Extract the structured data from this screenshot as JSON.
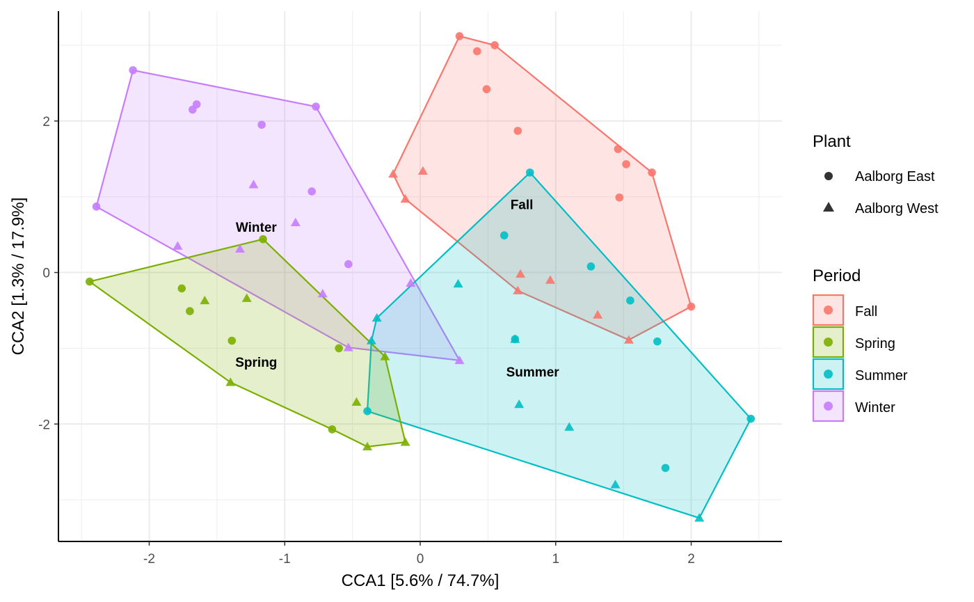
{
  "chart_data": {
    "type": "scatter",
    "xlabel": "CCA1 [5.6% / 74.7%]",
    "ylabel": "CCA2 [1.3% / 17.9%]",
    "xlim": [
      -2.67,
      2.67
    ],
    "ylim": [
      -3.55,
      3.45
    ],
    "x_ticks": [
      -2,
      -1,
      0,
      1,
      2
    ],
    "y_ticks": [
      -2,
      0,
      2
    ],
    "x_tick_labels": [
      "-2",
      "-1",
      "0",
      "1",
      "2"
    ],
    "y_tick_labels": [
      "-2",
      "0",
      "2"
    ],
    "grid": true,
    "legend_position": "right",
    "legend": {
      "shape_title": "Plant",
      "shape_entries": [
        {
          "label": "Aalborg East",
          "shape": "circle"
        },
        {
          "label": "Aalborg West",
          "shape": "triangle"
        }
      ],
      "color_title": "Period",
      "color_entries": [
        {
          "label": "Fall",
          "color": "#F8766D"
        },
        {
          "label": "Spring",
          "color": "#7CAE00"
        },
        {
          "label": "Summer",
          "color": "#00BFC4"
        },
        {
          "label": "Winter",
          "color": "#C77CFF"
        }
      ]
    },
    "series": [
      {
        "name": "Winter",
        "color": "#C77CFF",
        "label_pos": [
          -1.21,
          0.6
        ],
        "hull": [
          [
            -2.12,
            2.67
          ],
          [
            -0.77,
            2.19
          ],
          [
            0.29,
            -1.16
          ],
          [
            -0.53,
            -0.99
          ],
          [
            -2.39,
            0.87
          ]
        ],
        "points": [
          {
            "x": -2.12,
            "y": 2.67,
            "shape": "circle"
          },
          {
            "x": -1.65,
            "y": 2.22,
            "shape": "circle"
          },
          {
            "x": -1.68,
            "y": 2.15,
            "shape": "circle"
          },
          {
            "x": -0.77,
            "y": 2.19,
            "shape": "circle"
          },
          {
            "x": -1.17,
            "y": 1.95,
            "shape": "circle"
          },
          {
            "x": -0.8,
            "y": 1.07,
            "shape": "circle"
          },
          {
            "x": -2.39,
            "y": 0.87,
            "shape": "circle"
          },
          {
            "x": -0.53,
            "y": 0.11,
            "shape": "circle"
          },
          {
            "x": -1.23,
            "y": 1.16,
            "shape": "triangle"
          },
          {
            "x": -0.92,
            "y": 0.66,
            "shape": "triangle"
          },
          {
            "x": -1.79,
            "y": 0.35,
            "shape": "triangle"
          },
          {
            "x": -1.33,
            "y": 0.31,
            "shape": "triangle"
          },
          {
            "x": -0.72,
            "y": -0.28,
            "shape": "triangle"
          },
          {
            "x": -0.07,
            "y": -0.14,
            "shape": "triangle"
          },
          {
            "x": -0.53,
            "y": -0.99,
            "shape": "triangle"
          },
          {
            "x": 0.29,
            "y": -1.16,
            "shape": "triangle"
          }
        ]
      },
      {
        "name": "Fall",
        "color": "#F8766D",
        "label_pos": [
          0.75,
          0.9
        ],
        "hull": [
          [
            0.29,
            3.12
          ],
          [
            0.55,
            3.0
          ],
          [
            1.71,
            1.32
          ],
          [
            2.0,
            -0.45
          ],
          [
            1.54,
            -0.89
          ],
          [
            0.72,
            -0.24
          ],
          [
            -0.11,
            0.97
          ],
          [
            -0.2,
            1.3
          ]
        ],
        "points": [
          {
            "x": 0.29,
            "y": 3.12,
            "shape": "circle"
          },
          {
            "x": 0.42,
            "y": 2.92,
            "shape": "circle"
          },
          {
            "x": 0.55,
            "y": 3.0,
            "shape": "circle"
          },
          {
            "x": 0.49,
            "y": 2.42,
            "shape": "circle"
          },
          {
            "x": 0.72,
            "y": 1.87,
            "shape": "circle"
          },
          {
            "x": 1.46,
            "y": 1.63,
            "shape": "circle"
          },
          {
            "x": 1.52,
            "y": 1.43,
            "shape": "circle"
          },
          {
            "x": 1.71,
            "y": 1.32,
            "shape": "circle"
          },
          {
            "x": 1.47,
            "y": 0.99,
            "shape": "circle"
          },
          {
            "x": 2.0,
            "y": -0.45,
            "shape": "circle"
          },
          {
            "x": -0.2,
            "y": 1.3,
            "shape": "triangle"
          },
          {
            "x": 0.02,
            "y": 1.34,
            "shape": "triangle"
          },
          {
            "x": -0.11,
            "y": 0.97,
            "shape": "triangle"
          },
          {
            "x": 0.74,
            "y": -0.02,
            "shape": "triangle"
          },
          {
            "x": 0.96,
            "y": -0.1,
            "shape": "triangle"
          },
          {
            "x": 0.72,
            "y": -0.24,
            "shape": "triangle"
          },
          {
            "x": 1.31,
            "y": -0.56,
            "shape": "triangle"
          },
          {
            "x": 1.54,
            "y": -0.89,
            "shape": "triangle"
          }
        ]
      },
      {
        "name": "Summer",
        "color": "#00BFC4",
        "label_pos": [
          0.83,
          -1.31
        ],
        "hull": [
          [
            0.81,
            1.32
          ],
          [
            2.44,
            -1.93
          ],
          [
            2.06,
            -3.24
          ],
          [
            -0.39,
            -1.83
          ],
          [
            -0.36,
            -0.9
          ],
          [
            -0.32,
            -0.6
          ]
        ],
        "points": [
          {
            "x": 0.81,
            "y": 1.32,
            "shape": "circle"
          },
          {
            "x": 0.62,
            "y": 0.49,
            "shape": "circle"
          },
          {
            "x": 1.26,
            "y": 0.08,
            "shape": "circle"
          },
          {
            "x": 1.55,
            "y": -0.37,
            "shape": "circle"
          },
          {
            "x": 0.7,
            "y": -0.88,
            "shape": "circle"
          },
          {
            "x": 1.75,
            "y": -0.91,
            "shape": "circle"
          },
          {
            "x": -0.39,
            "y": -1.83,
            "shape": "circle"
          },
          {
            "x": 2.44,
            "y": -1.93,
            "shape": "circle"
          },
          {
            "x": 1.81,
            "y": -2.58,
            "shape": "circle"
          },
          {
            "x": 0.28,
            "y": -0.15,
            "shape": "triangle"
          },
          {
            "x": -0.32,
            "y": -0.6,
            "shape": "triangle"
          },
          {
            "x": -0.36,
            "y": -0.9,
            "shape": "triangle"
          },
          {
            "x": 0.7,
            "y": -0.88,
            "shape": "triangle"
          },
          {
            "x": 0.73,
            "y": -1.74,
            "shape": "triangle"
          },
          {
            "x": 1.1,
            "y": -2.04,
            "shape": "triangle"
          },
          {
            "x": 1.44,
            "y": -2.8,
            "shape": "triangle"
          },
          {
            "x": 2.06,
            "y": -3.24,
            "shape": "triangle"
          }
        ]
      },
      {
        "name": "Spring",
        "color": "#7CAE00",
        "label_pos": [
          -1.21,
          -1.18
        ],
        "hull": [
          [
            -1.16,
            0.44
          ],
          [
            -0.26,
            -1.11
          ],
          [
            -0.11,
            -2.24
          ],
          [
            -0.39,
            -2.3
          ],
          [
            -0.65,
            -2.07
          ],
          [
            -1.4,
            -1.45
          ],
          [
            -2.44,
            -0.12
          ]
        ],
        "points": [
          {
            "x": -2.44,
            "y": -0.12,
            "shape": "circle"
          },
          {
            "x": -1.76,
            "y": -0.21,
            "shape": "circle"
          },
          {
            "x": -1.7,
            "y": -0.51,
            "shape": "circle"
          },
          {
            "x": -1.16,
            "y": 0.44,
            "shape": "circle"
          },
          {
            "x": -1.39,
            "y": -0.9,
            "shape": "circle"
          },
          {
            "x": -0.6,
            "y": -1.0,
            "shape": "circle"
          },
          {
            "x": -0.65,
            "y": -2.07,
            "shape": "circle"
          },
          {
            "x": -1.59,
            "y": -0.37,
            "shape": "triangle"
          },
          {
            "x": -1.28,
            "y": -0.34,
            "shape": "triangle"
          },
          {
            "x": -0.26,
            "y": -1.11,
            "shape": "triangle"
          },
          {
            "x": -1.4,
            "y": -1.45,
            "shape": "triangle"
          },
          {
            "x": -0.47,
            "y": -1.71,
            "shape": "triangle"
          },
          {
            "x": -0.39,
            "y": -2.3,
            "shape": "triangle"
          },
          {
            "x": -0.11,
            "y": -2.24,
            "shape": "triangle"
          }
        ]
      }
    ]
  }
}
